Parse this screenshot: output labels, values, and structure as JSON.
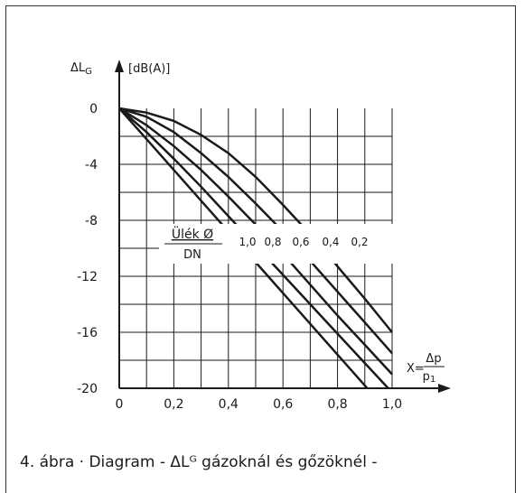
{
  "chart_data": {
    "type": "line",
    "y_axis_symbol": "ΔL",
    "y_axis_symbol_sub": "G",
    "y_axis_unit": "[dB(A)]",
    "x_axis_prefix": "X=",
    "x_axis_numerator": "Δp",
    "x_axis_denominator": "p",
    "x_axis_denominator_sub": "1",
    "x_ticks": [
      "0",
      "0,2",
      "0,4",
      "0,6",
      "0,8",
      "1,0"
    ],
    "x_tick_values": [
      0,
      0.2,
      0.4,
      0.6,
      0.8,
      1.0
    ],
    "y_ticks": [
      "0",
      "-4",
      "-8",
      "-12",
      "-16",
      "-20"
    ],
    "y_tick_values": [
      0,
      -4,
      -8,
      -12,
      -16,
      -20
    ],
    "xlim": [
      0,
      1.0
    ],
    "ylim": [
      -20,
      0
    ],
    "grid": true,
    "param_label_top": "Ülék Ø",
    "param_label_bottom": "DN",
    "series": [
      {
        "name": "1,0",
        "x": [
          0,
          0.1,
          0.2,
          0.3,
          0.4,
          0.5,
          0.6,
          0.7,
          0.8,
          0.9,
          1.0
        ],
        "y": [
          0,
          -2.2,
          -4.4,
          -6.6,
          -8.8,
          -11.0,
          -13.2,
          -15.4,
          -17.6,
          -19.8,
          -22.0
        ]
      },
      {
        "name": "0,8",
        "x": [
          0,
          0.1,
          0.2,
          0.3,
          0.4,
          0.5,
          0.6,
          0.7,
          0.8,
          0.9,
          1.0
        ],
        "y": [
          0,
          -1.7,
          -3.6,
          -5.6,
          -7.7,
          -9.8,
          -11.9,
          -14.0,
          -16.1,
          -18.2,
          -20.3
        ]
      },
      {
        "name": "0,6",
        "x": [
          0,
          0.1,
          0.2,
          0.3,
          0.4,
          0.5,
          0.6,
          0.7,
          0.8,
          0.9,
          1.0
        ],
        "y": [
          0,
          -1.2,
          -2.7,
          -4.4,
          -6.3,
          -8.3,
          -10.4,
          -12.6,
          -14.8,
          -16.9,
          -19.0
        ]
      },
      {
        "name": "0,4",
        "x": [
          0,
          0.1,
          0.2,
          0.3,
          0.4,
          0.5,
          0.6,
          0.7,
          0.8,
          0.9,
          1.0
        ],
        "y": [
          0,
          -0.6,
          -1.7,
          -3.2,
          -4.9,
          -6.8,
          -8.8,
          -10.9,
          -13.1,
          -15.3,
          -17.5
        ]
      },
      {
        "name": "0,2",
        "x": [
          0,
          0.1,
          0.2,
          0.3,
          0.4,
          0.5,
          0.6,
          0.7,
          0.8,
          0.9,
          1.0
        ],
        "y": [
          0,
          -0.3,
          -0.9,
          -1.9,
          -3.2,
          -4.9,
          -6.9,
          -9.0,
          -11.3,
          -13.6,
          -16.0
        ]
      }
    ]
  },
  "caption": "4. ábra · Diagram - ΔLᴳ gázoknál és gőzöknél -",
  "colors": {
    "lines": "#1a1a1a",
    "grid": "#1a1a1a",
    "frame": "#333333"
  }
}
